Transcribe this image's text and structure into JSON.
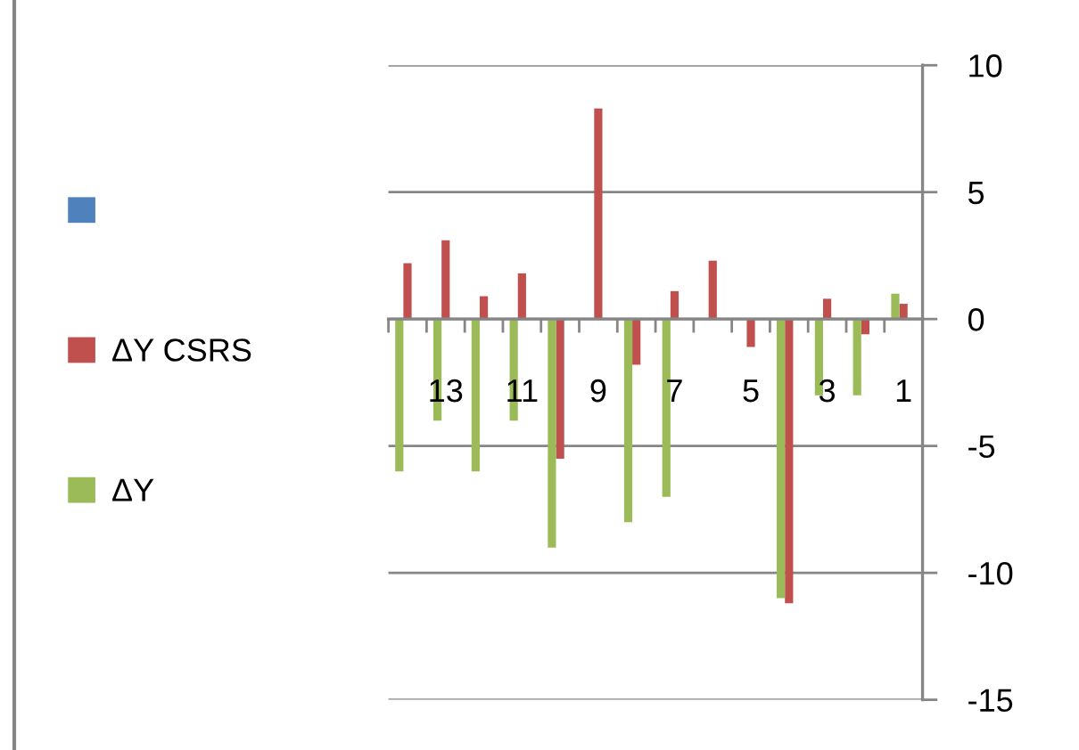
{
  "chart_data": {
    "type": "bar",
    "categories": [
      null,
      "13",
      null,
      "11",
      null,
      "9",
      null,
      "7",
      null,
      "5",
      null,
      "3",
      null,
      "1"
    ],
    "series": [
      {
        "color": "#4f81bd",
        "values": [
          null,
          null,
          null,
          null,
          null,
          null,
          null,
          null,
          null,
          null,
          null,
          null,
          null,
          null
        ]
      },
      {
        "name": "ΔY CSRS",
        "color": "#c0504d",
        "values": [
          2.2,
          3.1,
          0.9,
          1.8,
          -5.5,
          8.3,
          -1.8,
          1.1,
          2.3,
          -1.1,
          -11.2,
          0.8,
          -0.6,
          0.6
        ]
      },
      {
        "name": "ΔY",
        "color": "#9bbb59",
        "values": [
          -6.0,
          -4.0,
          -6.0,
          -4.0,
          -9.0,
          null,
          -8.0,
          -7.0,
          null,
          null,
          -11.0,
          -3.0,
          -3.0,
          1.0
        ]
      }
    ],
    "ylim": [
      -15,
      10
    ],
    "yticks": [
      -15,
      -10,
      -5,
      0,
      5,
      10
    ],
    "grid": "y",
    "legend": "left"
  }
}
